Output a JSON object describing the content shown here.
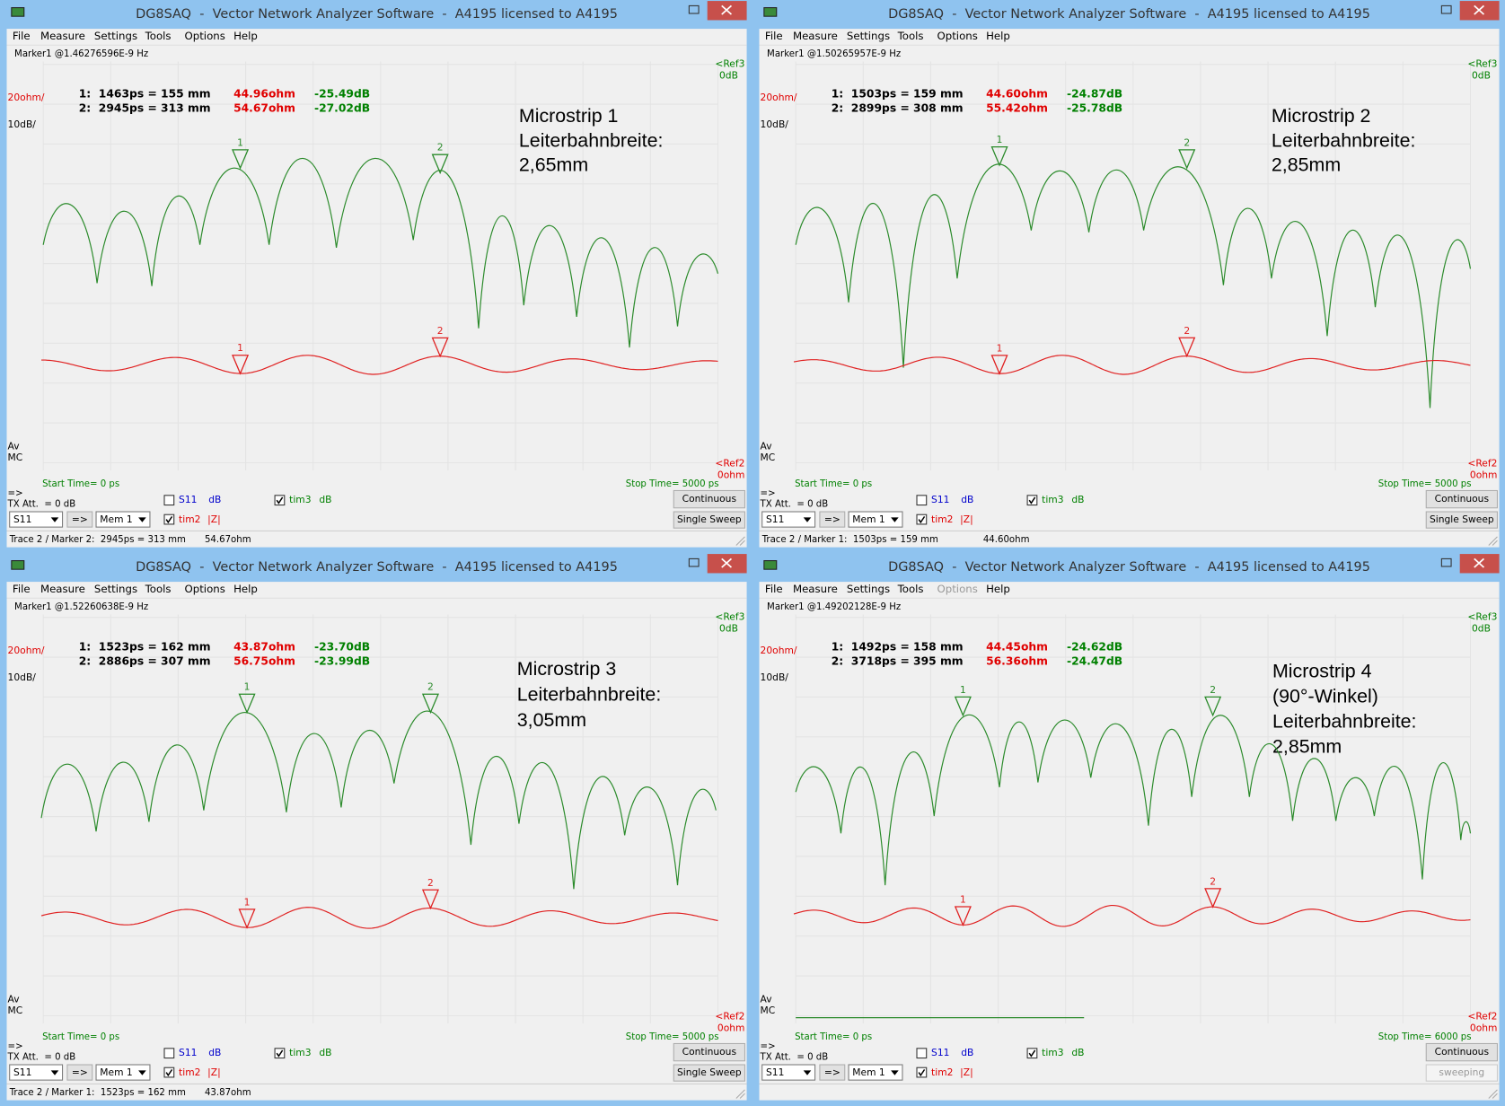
{
  "windows": [
    {
      "title": "DG8SAQ  -  Vector Network Analyzer Software  -  A4195 licensed to A4195",
      "menu": [
        "File",
        "Measure",
        "Settings",
        "Tools",
        "Options",
        "Help"
      ],
      "marker_info": "Marker1 @1.46276596E-9 Hz",
      "ref3": "<Ref3",
      "ref3_value": "0dB",
      "scale_ohm": "20ohm/",
      "scale_db": "10dB/",
      "marker_rows": [
        [
          "1:  1463ps = 155 mm",
          "44.96ohm",
          "-25.49dB"
        ],
        [
          "2:  2945ps = 313 mm",
          "54.67ohm",
          "-27.02dB"
        ]
      ],
      "note": [
        "Microstrip 1",
        "Leiterbahnbreite:",
        "2,65mm"
      ],
      "trace_markers": [
        "1",
        "2"
      ],
      "av": "Av",
      "mc": "MC",
      "ref2": "<Ref2",
      "ref2_value": "0ohm",
      "start_time": "Start Time= 0 ps",
      "stop_time": "Stop Time= 5000 ps",
      "arrow": "=>",
      "tx_att": "TX Att.  = 0 dB",
      "s11": "S11",
      "s11_unit": "dB",
      "tim3": "tim3",
      "tim3_unit": "dB",
      "param_select": "S11",
      "apply": "=>",
      "mem_select": "Mem 1",
      "tim2": "tim2",
      "tim2_unit": "|Z|",
      "continuous": "Continuous",
      "sweep": "Single Sweep",
      "status": "Trace 2 / Marker 2:  2945ps = 313 mm",
      "status_value": "54.67ohm"
    },
    {
      "title": "DG8SAQ  -  Vector Network Analyzer Software  -  A4195 licensed to A4195",
      "menu": [
        "File",
        "Measure",
        "Settings",
        "Tools",
        "Options",
        "Help"
      ],
      "marker_info": "Marker1 @1.50265957E-9 Hz",
      "ref3": "<Ref3",
      "ref3_value": "0dB",
      "scale_ohm": "20ohm/",
      "scale_db": "10dB/",
      "marker_rows": [
        [
          "1:  1503ps = 159 mm",
          "44.60ohm",
          "-24.87dB"
        ],
        [
          "2:  2899ps = 308 mm",
          "55.42ohm",
          "-25.78dB"
        ]
      ],
      "note": [
        "Microstrip 2",
        "Leiterbahnbreite:",
        "2,85mm"
      ],
      "trace_markers": [
        "1",
        "2"
      ],
      "av": "Av",
      "mc": "MC",
      "ref2": "<Ref2",
      "ref2_value": "0ohm",
      "start_time": "Start Time= 0 ps",
      "stop_time": "Stop Time= 5000 ps",
      "arrow": "=>",
      "tx_att": "TX Att.  = 0 dB",
      "s11": "S11",
      "s11_unit": "dB",
      "tim3": "tim3",
      "tim3_unit": "dB",
      "param_select": "S11",
      "apply": "=>",
      "mem_select": "Mem 1",
      "tim2": "tim2",
      "tim2_unit": "|Z|",
      "continuous": "Continuous",
      "sweep": "Single Sweep",
      "status": "Trace 2 / Marker 1:  1503ps = 159 mm",
      "status_value": "44.60ohm"
    },
    {
      "title": "DG8SAQ  -  Vector Network Analyzer Software  -  A4195 licensed to A4195",
      "menu": [
        "File",
        "Measure",
        "Settings",
        "Tools",
        "Options",
        "Help"
      ],
      "marker_info": "Marker1 @1.52260638E-9 Hz",
      "ref3": "<Ref3",
      "ref3_value": "0dB",
      "scale_ohm": "20ohm/",
      "scale_db": "10dB/",
      "marker_rows": [
        [
          "1:  1523ps = 162 mm",
          "43.87ohm",
          "-23.70dB"
        ],
        [
          "2:  2886ps = 307 mm",
          "56.75ohm",
          "-23.99dB"
        ]
      ],
      "note": [
        "Microstrip 3",
        "Leiterbahnbreite:",
        "3,05mm"
      ],
      "trace_markers": [
        "1",
        "2"
      ],
      "av": "Av",
      "mc": "MC",
      "ref2": "<Ref2",
      "ref2_value": "0ohm",
      "start_time": "Start Time= 0 ps",
      "stop_time": "Stop Time= 5000 ps",
      "arrow": "=>",
      "tx_att": "TX Att.  = 0 dB",
      "s11": "S11",
      "s11_unit": "dB",
      "tim3": "tim3",
      "tim3_unit": "dB",
      "param_select": "S11",
      "apply": "=>",
      "mem_select": "Mem 1",
      "tim2": "tim2",
      "tim2_unit": "|Z|",
      "continuous": "Continuous",
      "sweep": "Single Sweep",
      "status": "Trace 2 / Marker 1:  1523ps = 162 mm",
      "status_value": "43.87ohm"
    },
    {
      "title": "DG8SAQ  -  Vector Network Analyzer Software  -  A4195 licensed to A4195",
      "menu": [
        "File",
        "Measure",
        "Settings",
        "Tools",
        "Options",
        "Help"
      ],
      "marker_info": "Marker1 @1.49202128E-9 Hz",
      "ref3": "<Ref3",
      "ref3_value": "0dB",
      "scale_ohm": "20ohm/",
      "scale_db": "10dB/",
      "marker_rows": [
        [
          "1:  1492ps = 158 mm",
          "44.45ohm",
          "-24.62dB"
        ],
        [
          "2:  3718ps = 395 mm",
          "56.36ohm",
          "-24.47dB"
        ]
      ],
      "note": [
        "Microstrip 4",
        "(90°-Winkel)",
        "Leiterbahnbreite:",
        "2,85mm"
      ],
      "trace_markers": [
        "1",
        "2"
      ],
      "av": "Av",
      "mc": "MC",
      "ref2": "<Ref2",
      "ref2_value": "0ohm",
      "start_time": "Start Time= 0 ps",
      "stop_time": "Stop Time= 6000 ps",
      "arrow": "=>",
      "tx_att": "TX Att.  = 0 dB",
      "s11": "S11",
      "s11_unit": "dB",
      "tim3": "tim3",
      "tim3_unit": "dB",
      "param_select": "S11",
      "apply": "=>",
      "mem_select": "Mem 1",
      "tim2": "tim2",
      "tim2_unit": "|Z|",
      "continuous": "Continuous",
      "sweep": "sweeping"
    }
  ]
}
